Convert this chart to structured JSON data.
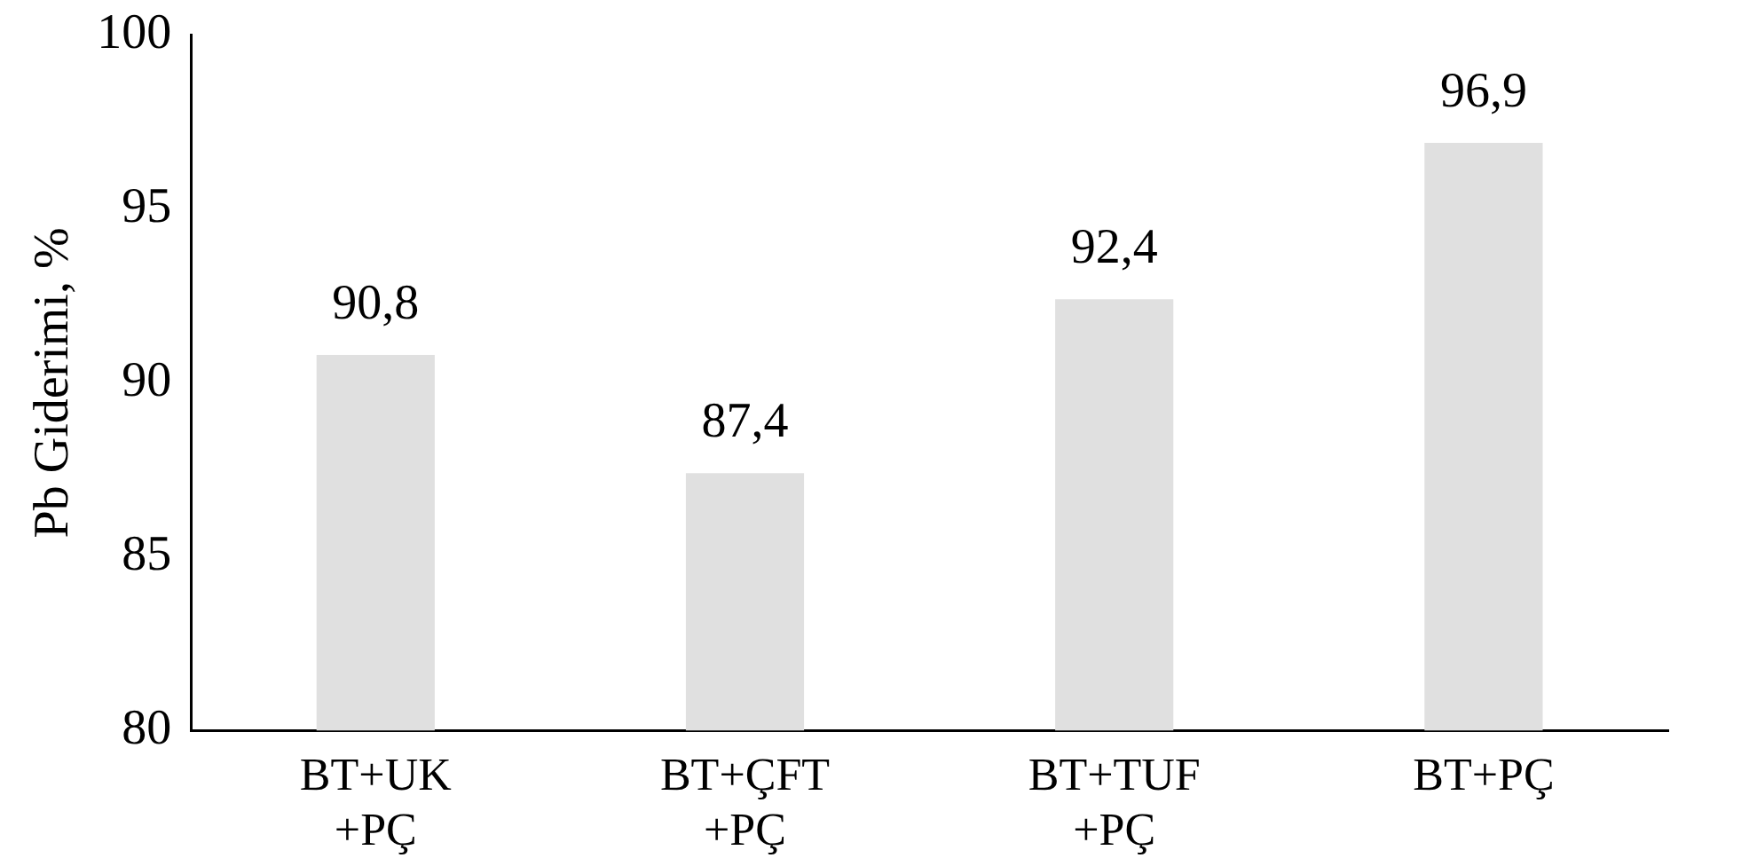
{
  "chart_data": {
    "type": "bar",
    "ylabel": "Pb Giderimi, %",
    "categories": [
      "BT+UK\n+PÇ",
      "BT+ÇFT\n+PÇ",
      "BT+TUF\n+PÇ",
      "BT+PÇ"
    ],
    "values": [
      90.8,
      87.4,
      92.4,
      96.9
    ],
    "color": "#e0e0e0",
    "value_labels": [
      "90,8",
      "87,4",
      "92,4",
      "96,9"
    ],
    "ylim": [
      80,
      100
    ],
    "yticks": [
      80,
      85,
      90,
      95,
      100
    ]
  }
}
